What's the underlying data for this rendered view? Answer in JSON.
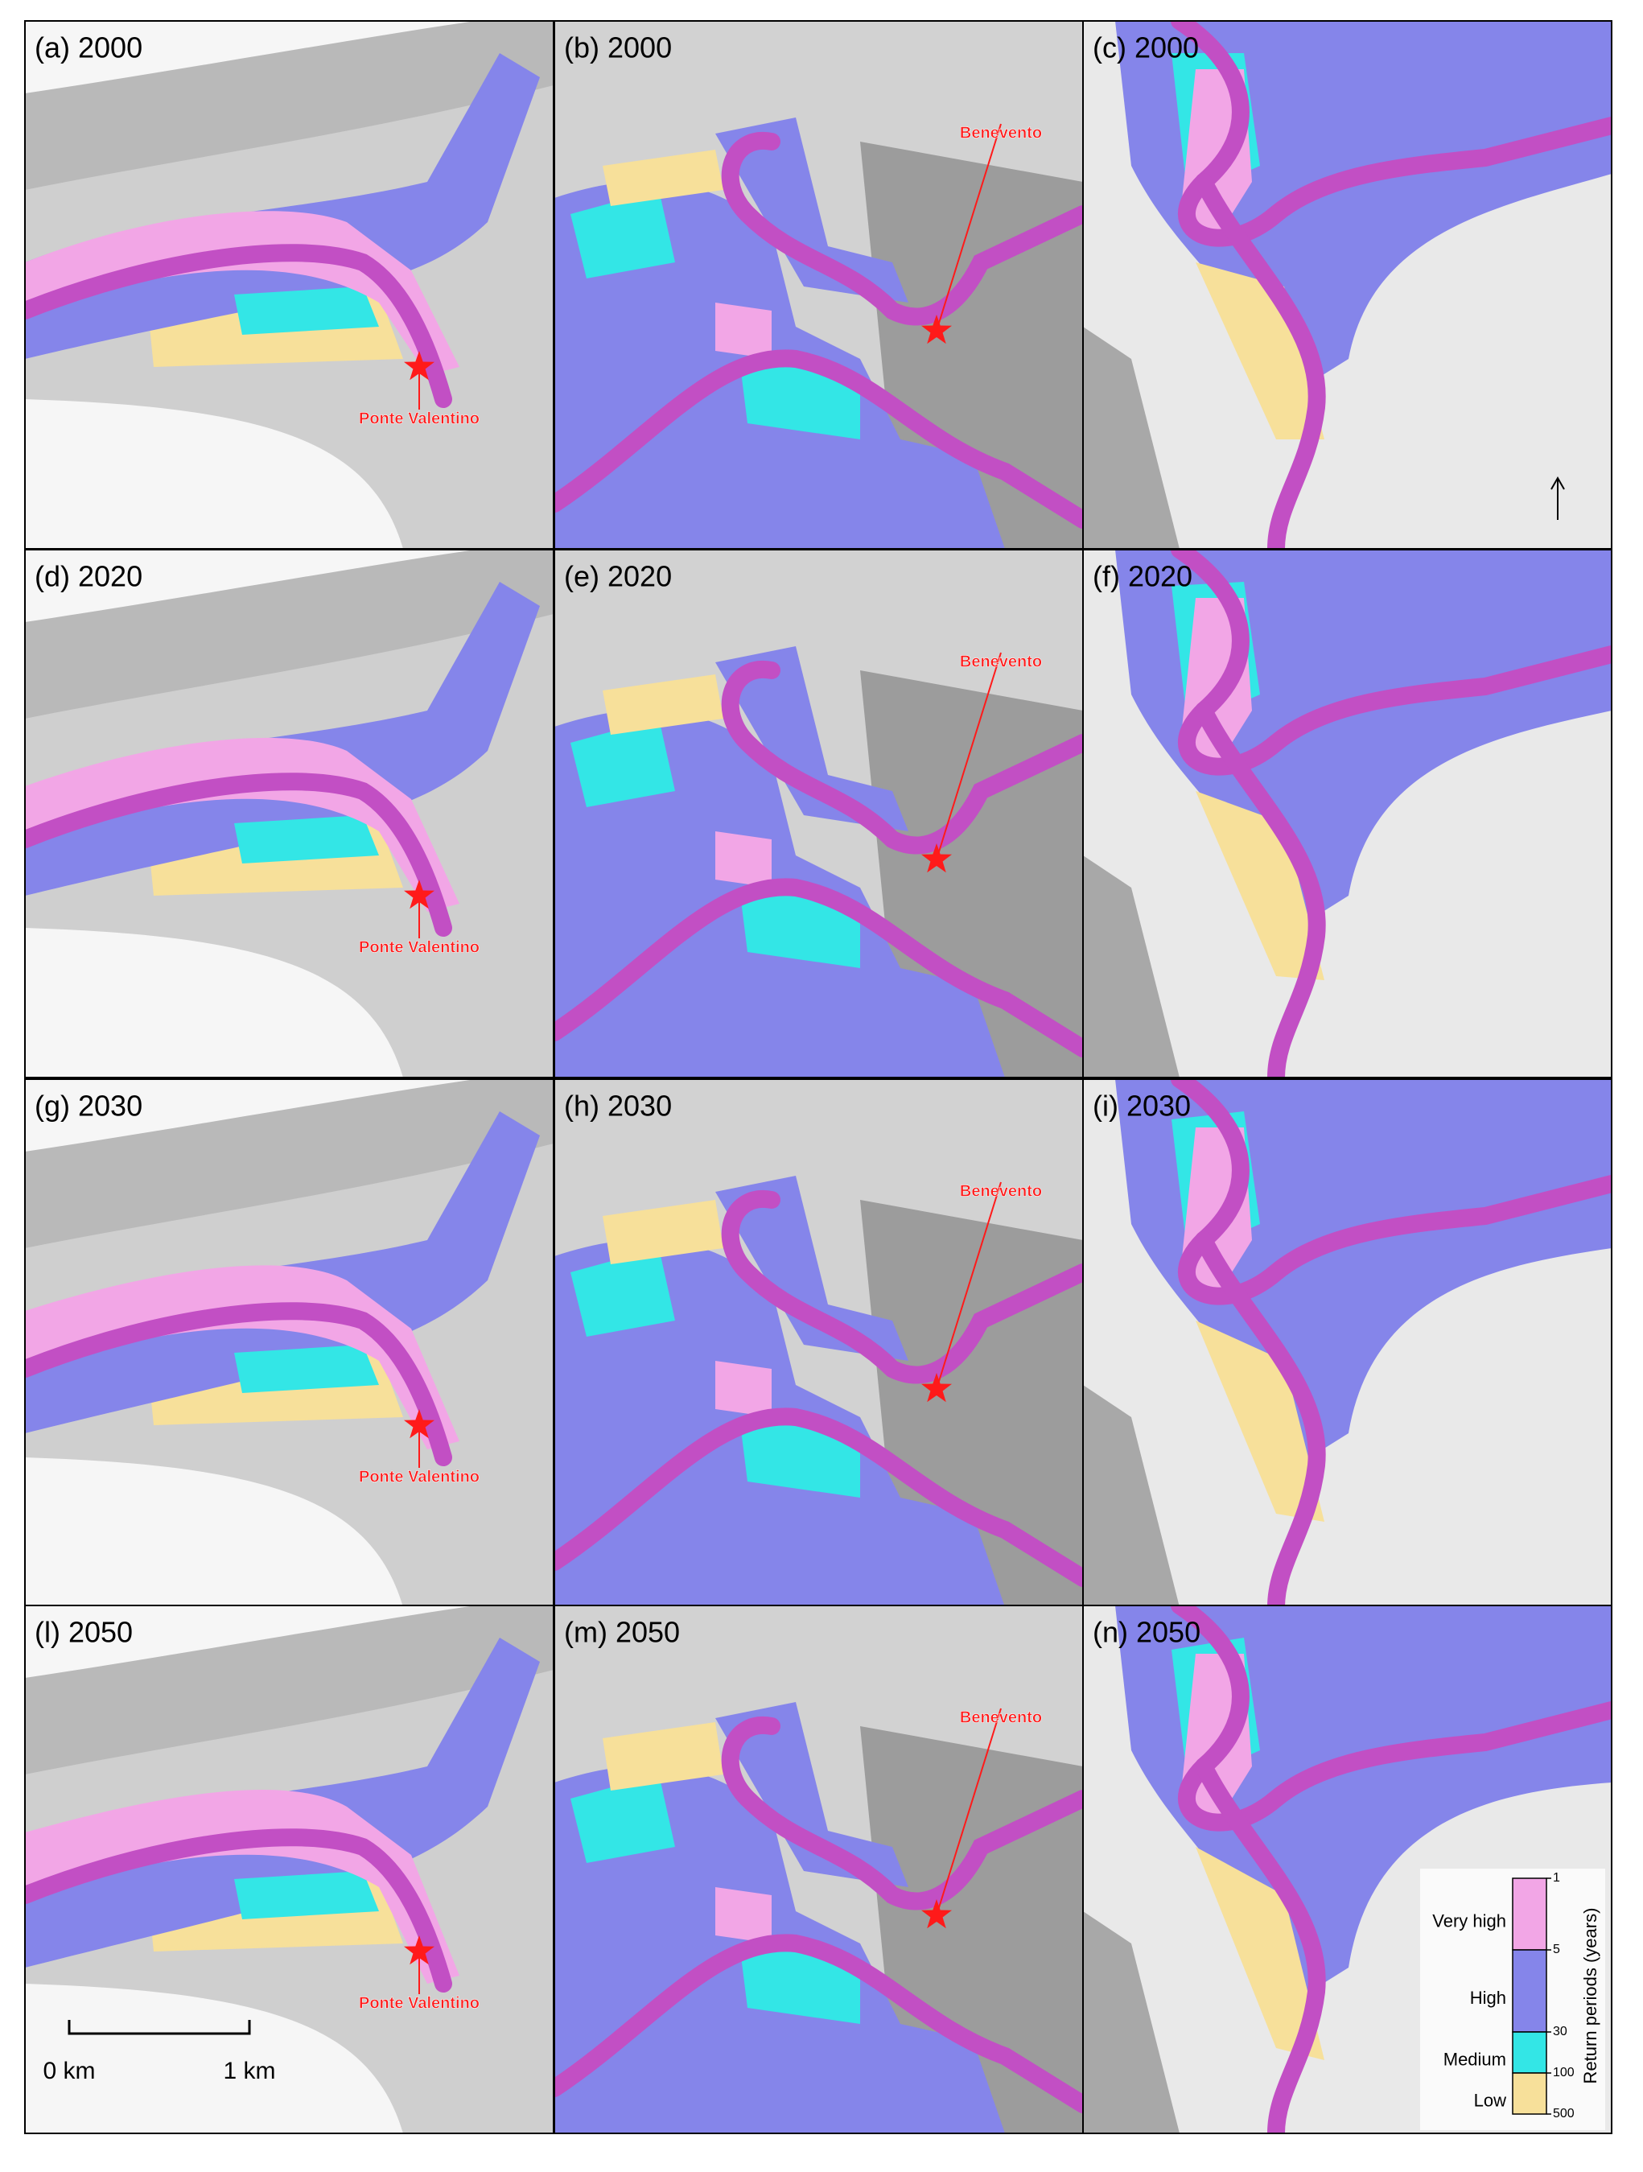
{
  "panels": [
    {
      "label": "(a) 2000",
      "place": "Ponte Valentino"
    },
    {
      "label": "(b) 2000",
      "place": "Benevento"
    },
    {
      "label": "(c) 2000"
    },
    {
      "label": "(d) 2020",
      "place": "Ponte Valentino"
    },
    {
      "label": "(e) 2020",
      "place": "Benevento"
    },
    {
      "label": "(f) 2020"
    },
    {
      "label": "(g) 2030",
      "place": "Ponte Valentino"
    },
    {
      "label": "(h) 2030",
      "place": "Benevento"
    },
    {
      "label": "(i) 2030"
    },
    {
      "label": "(l) 2050",
      "place": "Ponte Valentino"
    },
    {
      "label": "(m) 2050",
      "place": "Benevento"
    },
    {
      "label": "(n) 2050"
    }
  ],
  "legend": {
    "title": "Return periods (years)",
    "classes": [
      {
        "name": "Very high",
        "color": "#f2a6e6"
      },
      {
        "name": "High",
        "color": "#8585ea"
      },
      {
        "name": "Medium",
        "color": "#33e6e6"
      },
      {
        "name": "Low",
        "color": "#f7e09a"
      }
    ],
    "ticks": [
      1,
      5,
      30,
      100,
      500
    ]
  },
  "scale_bar": {
    "labels": [
      "0 km",
      "1 km"
    ]
  }
}
